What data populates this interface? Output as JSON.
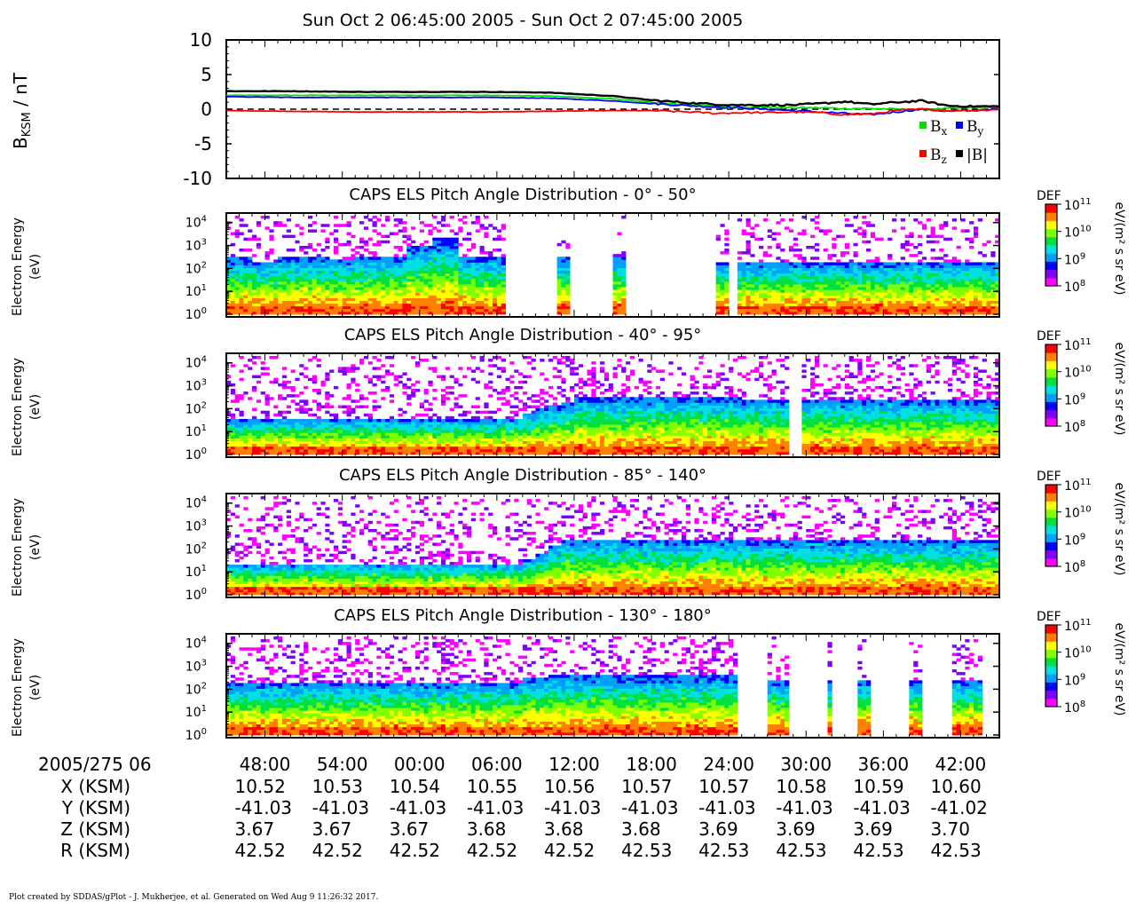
{
  "header": {
    "title": "Sun Oct 2 06:45:00 2005 - Sun Oct 2 07:45:00 2005"
  },
  "colors": {
    "bx": "#00e000",
    "by": "#0000ff",
    "bz": "#ff0000",
    "btot": "#000000",
    "colormap": [
      "#ff00ff",
      "#8000ff",
      "#0000ff",
      "#00a0ff",
      "#00e0e0",
      "#00e040",
      "#80ff00",
      "#ffff00",
      "#ff8000",
      "#ff0000"
    ]
  },
  "chart_data": [
    {
      "type": "line",
      "ylabel_main": "B",
      "ylabel_sub": "KSM",
      "ylabel_unit": " / nT",
      "ylim": [
        -10,
        10
      ],
      "yticks": [
        "10",
        "5",
        "0",
        "-5",
        "-10"
      ],
      "xlim_min": [
        0,
        60
      ],
      "zero_line": true,
      "legend_placement": "bottom-right",
      "x_min": [
        0,
        5,
        10,
        15,
        20,
        25,
        30,
        33,
        36,
        38,
        40,
        42,
        44,
        46,
        48,
        50,
        52,
        54,
        56,
        58,
        60
      ],
      "series": [
        {
          "name": "B",
          "sub": "x",
          "color_key": "bx",
          "values": [
            2.0,
            2.0,
            2.0,
            2.0,
            2.0,
            1.9,
            1.5,
            1.0,
            0.6,
            0.4,
            0.3,
            0.3,
            0.2,
            0.2,
            0.1,
            0.1,
            0.0,
            -0.1,
            0.1,
            0.2,
            0.2
          ]
        },
        {
          "name": "B",
          "sub": "y",
          "color_key": "by",
          "values": [
            1.8,
            1.7,
            1.7,
            1.7,
            1.7,
            1.6,
            1.2,
            0.8,
            0.5,
            0.3,
            0.2,
            0.0,
            -0.2,
            -0.4,
            -0.6,
            -0.8,
            -0.4,
            0.0,
            -0.3,
            -0.2,
            0.1
          ]
        },
        {
          "name": "B",
          "sub": "z",
          "color_key": "bz",
          "values": [
            -0.2,
            -0.3,
            -0.4,
            -0.4,
            -0.4,
            -0.3,
            -0.2,
            -0.2,
            -0.4,
            -0.6,
            -0.5,
            -0.5,
            -0.4,
            -0.5,
            -0.8,
            -0.7,
            -0.2,
            0.0,
            -0.2,
            -0.2,
            0.0
          ]
        },
        {
          "name": "|B|",
          "sub": "",
          "color_key": "btot",
          "values": [
            2.6,
            2.6,
            2.5,
            2.5,
            2.5,
            2.4,
            1.9,
            1.3,
            0.9,
            0.7,
            0.6,
            0.6,
            0.6,
            0.8,
            1.1,
            0.7,
            1.0,
            1.2,
            0.5,
            0.4,
            0.4
          ]
        }
      ]
    },
    {
      "type": "heatmap",
      "title": "CAPS ELS Pitch Angle Distribution - 0° - 50°",
      "ylabel_l1": "Electron Energy",
      "ylabel_l2": "(eV)",
      "yticks": [
        "4",
        "3",
        "2",
        "1",
        "0"
      ],
      "zlabel": "DEF",
      "zunit": "eV/(m² s sr eV)",
      "zticks": [
        "11",
        "10",
        "9",
        "8"
      ],
      "data_end_min": 60,
      "gaps_min": [
        [
          21.5,
          25.5
        ],
        [
          26.6,
          30.0
        ],
        [
          30.8,
          34.9
        ],
        [
          34.9,
          36.0
        ],
        [
          36.0,
          37.0
        ],
        [
          37.0,
          38.0
        ],
        [
          39.0,
          39.5
        ]
      ],
      "column_max_log": [
        2.5,
        2.5,
        2.3,
        2.3,
        2.5,
        2.5,
        2.5,
        2.5,
        2.4,
        2.4,
        2.5,
        2.5,
        2.5,
        2.5,
        3.0,
        3.0,
        3.3,
        3.3,
        2.5,
        2.5,
        2.5,
        2.5,
        2.5,
        2.5,
        2.5,
        2.5,
        2.5,
        2.5,
        2.5,
        2.5,
        2.5,
        2.5,
        2.5,
        2.5,
        2.3,
        2.3,
        2.3,
        2.3,
        2.3,
        2.3,
        2.3,
        2.3,
        2.3,
        2.3,
        2.3,
        2.3,
        2.3,
        2.3,
        2.3,
        2.3,
        2.3,
        2.3,
        2.3,
        2.3,
        2.3,
        2.3,
        2.3,
        2.3,
        2.3,
        2.3
      ],
      "noise_level": 0.75
    },
    {
      "type": "heatmap",
      "title": "CAPS ELS Pitch Angle Distribution - 40° - 95°",
      "ylabel_l1": "Electron Energy",
      "ylabel_l2": "(eV)",
      "yticks": [
        "4",
        "3",
        "2",
        "1",
        "0"
      ],
      "zlabel": "DEF",
      "zunit": "eV/(m² s sr eV)",
      "zticks": [
        "11",
        "10",
        "9",
        "8"
      ],
      "data_end_min": 60,
      "gaps_min": [
        [
          43.5,
          44.5
        ]
      ],
      "column_max_log": [
        1.5,
        1.5,
        1.5,
        1.5,
        1.5,
        1.5,
        1.5,
        1.5,
        1.5,
        1.5,
        1.5,
        1.5,
        1.5,
        1.5,
        1.5,
        1.5,
        1.5,
        1.5,
        1.5,
        1.5,
        1.5,
        1.6,
        1.6,
        1.8,
        2.0,
        2.2,
        2.3,
        2.5,
        2.5,
        2.5,
        2.5,
        2.5,
        2.5,
        2.5,
        2.5,
        2.5,
        2.5,
        2.5,
        2.5,
        2.5,
        2.4,
        2.4,
        2.4,
        2.4,
        2.4,
        2.4,
        2.4,
        2.4,
        2.4,
        2.4,
        2.4,
        2.4,
        2.4,
        2.4,
        2.4,
        2.4,
        2.4,
        2.4,
        2.4,
        2.4
      ],
      "noise_level": 0.7
    },
    {
      "type": "heatmap",
      "title": "CAPS ELS Pitch Angle Distribution - 85° - 140°",
      "ylabel_l1": "Electron Energy",
      "ylabel_l2": "(eV)",
      "yticks": [
        "4",
        "3",
        "2",
        "1",
        "0"
      ],
      "zlabel": "DEF",
      "zunit": "eV/(m² s sr eV)",
      "zticks": [
        "11",
        "10",
        "9",
        "8"
      ],
      "data_end_min": 60,
      "gaps_min": [],
      "column_max_log": [
        1.3,
        1.3,
        1.3,
        1.3,
        1.3,
        1.3,
        1.3,
        1.3,
        1.3,
        1.3,
        1.3,
        1.3,
        1.3,
        1.3,
        1.3,
        1.3,
        1.3,
        1.3,
        1.3,
        1.3,
        1.3,
        1.3,
        1.3,
        1.5,
        1.8,
        2.1,
        2.4,
        2.4,
        2.4,
        2.4,
        2.4,
        2.4,
        2.4,
        2.4,
        2.4,
        2.4,
        2.4,
        2.4,
        2.4,
        2.4,
        2.4,
        2.4,
        2.4,
        2.4,
        2.4,
        2.4,
        2.4,
        2.4,
        2.4,
        2.4,
        2.4,
        2.4,
        2.4,
        2.4,
        2.4,
        2.4,
        2.4,
        2.4,
        2.4,
        2.4
      ],
      "noise_level": 0.7
    },
    {
      "type": "heatmap",
      "title": "CAPS ELS Pitch Angle Distribution - 130° - 180°",
      "ylabel_l1": "Electron Energy",
      "ylabel_l2": "(eV)",
      "yticks": [
        "4",
        "3",
        "2",
        "1",
        "0"
      ],
      "zlabel": "DEF",
      "zunit": "eV/(m² s sr eV)",
      "zticks": [
        "11",
        "10",
        "9",
        "8"
      ],
      "data_end_min": 60,
      "gaps_min": [
        [
          39.5,
          42.0
        ],
        [
          43.5,
          46.5
        ],
        [
          46.7,
          48.9
        ],
        [
          49.8,
          52.8
        ],
        [
          53.7,
          56.3
        ],
        [
          58.5,
          60.0
        ]
      ],
      "column_max_log": [
        2.3,
        2.3,
        2.3,
        2.3,
        2.3,
        2.3,
        2.3,
        2.3,
        2.3,
        2.3,
        2.3,
        2.3,
        2.3,
        2.3,
        2.3,
        2.3,
        2.3,
        2.3,
        2.3,
        2.3,
        2.3,
        2.3,
        2.3,
        2.5,
        2.5,
        2.6,
        2.6,
        2.6,
        2.6,
        2.6,
        2.6,
        2.6,
        2.6,
        2.6,
        2.6,
        2.6,
        2.6,
        2.6,
        2.6,
        2.6,
        2.4,
        2.4,
        2.4,
        2.4,
        2.4,
        2.4,
        2.4,
        2.4,
        2.4,
        2.4,
        2.4,
        2.4,
        2.4,
        2.4,
        2.4,
        2.4,
        2.4,
        2.4,
        2.4,
        2.4
      ],
      "noise_level": 0.7
    }
  ],
  "time_axis": {
    "label": "2005/275 06",
    "ticks_min": [
      3,
      9,
      15,
      21,
      27,
      33,
      39,
      45,
      51,
      57
    ],
    "tick_labels": [
      "48:00",
      "54:00",
      "00:00",
      "06:00",
      "12:00",
      "18:00",
      "24:00",
      "30:00",
      "36:00",
      "42:00"
    ]
  },
  "ephemeris": [
    {
      "label": "X (KSM)",
      "values": [
        "10.52",
        "10.53",
        "10.54",
        "10.55",
        "10.56",
        "10.57",
        "10.57",
        "10.58",
        "10.59",
        "10.60"
      ]
    },
    {
      "label": "Y (KSM)",
      "values": [
        "-41.03",
        "-41.03",
        "-41.03",
        "-41.03",
        "-41.03",
        "-41.03",
        "-41.03",
        "-41.03",
        "-41.03",
        "-41.02"
      ]
    },
    {
      "label": "Z (KSM)",
      "values": [
        "3.67",
        "3.67",
        "3.67",
        "3.68",
        "3.68",
        "3.68",
        "3.69",
        "3.69",
        "3.69",
        "3.70"
      ]
    },
    {
      "label": "R (KSM)",
      "values": [
        "42.52",
        "42.52",
        "42.52",
        "42.52",
        "42.52",
        "42.53",
        "42.53",
        "42.53",
        "42.53",
        "42.53"
      ]
    }
  ],
  "footer": {
    "text": "Plot created by SDDAS/gPlot - J. Mukherjee, et al.  Generated on Wed Aug 9 11:26:32 2017."
  }
}
